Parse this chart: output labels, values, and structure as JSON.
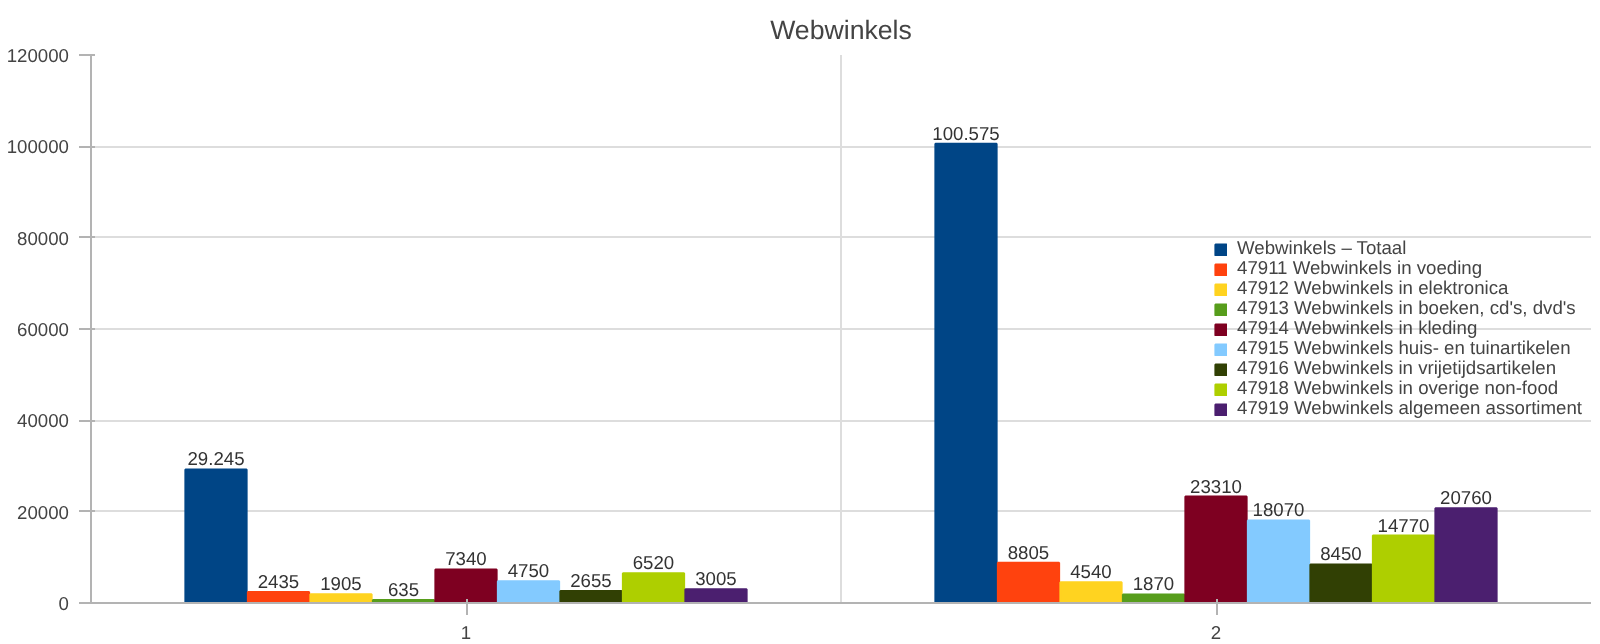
{
  "chart_data": {
    "type": "bar",
    "title": "Webwinkels",
    "categories": [
      "1",
      "2"
    ],
    "series": [
      {
        "name": "Webwinkels – Totaal",
        "color": "#004586",
        "values": [
          29245,
          100575
        ],
        "value_labels": [
          "29.245",
          "100.575"
        ]
      },
      {
        "name": "47911 Webwinkels in voeding",
        "color": "#ff420e",
        "values": [
          2435,
          8805
        ],
        "value_labels": [
          "2435",
          "8805"
        ]
      },
      {
        "name": "47912 Webwinkels in elektronica",
        "color": "#ffd320",
        "values": [
          1905,
          4540
        ],
        "value_labels": [
          "1905",
          "4540"
        ]
      },
      {
        "name": "47913 Webwinkels in boeken, cd's, dvd's",
        "color": "#579d1c",
        "values": [
          635,
          1870
        ],
        "value_labels": [
          "635",
          "1870"
        ]
      },
      {
        "name": "47914 Webwinkels in kleding",
        "color": "#7e0021",
        "values": [
          7340,
          23310
        ],
        "value_labels": [
          "7340",
          "23310"
        ]
      },
      {
        "name": "47915 Webwinkels huis- en tuinartikelen",
        "color": "#83caff",
        "values": [
          4750,
          18070
        ],
        "value_labels": [
          "4750",
          "18070"
        ]
      },
      {
        "name": "47916 Webwinkels in vrijetijdsartikelen",
        "color": "#314004",
        "values": [
          2655,
          8450
        ],
        "value_labels": [
          "2655",
          "8450"
        ]
      },
      {
        "name": "47918 Webwinkels in overige non-food",
        "color": "#aecf00",
        "values": [
          6520,
          14770
        ],
        "value_labels": [
          "6520",
          "14770"
        ]
      },
      {
        "name": "47919 Webwinkels algemeen assortiment",
        "color": "#4b1f6f",
        "values": [
          3005,
          20760
        ],
        "value_labels": [
          "3005",
          "20760"
        ]
      }
    ],
    "ylim": [
      0,
      120000
    ],
    "yticks": [
      0,
      20000,
      40000,
      60000,
      80000,
      100000,
      120000
    ],
    "grid": true,
    "legend": "right"
  }
}
